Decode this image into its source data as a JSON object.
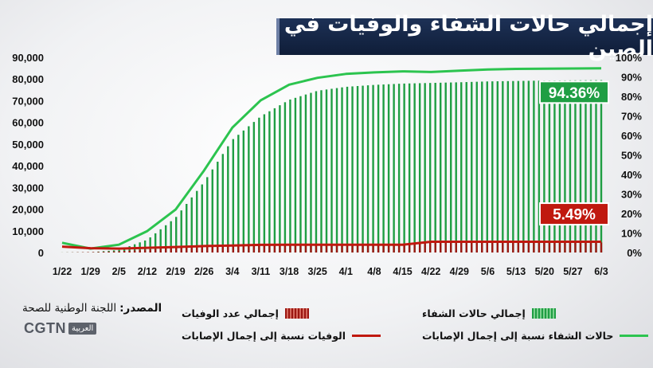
{
  "title": "إجمالي حالات الشفاء والوفيات في الصين",
  "source_label": "المصدر:",
  "source_text": "اللجنة الوطنية للصحة",
  "logo_text": "CGTN",
  "logo_sub": "العربية",
  "legend": {
    "recovered_bars": "إجمالي حالات الشفاء",
    "deaths_bars": "إجمالي عدد الوفيات",
    "recovery_ratio": "حالات الشفاء نسبة إلى إجمال الإصابات",
    "death_ratio": "الوفيات نسبة إلى إجمال الإصابات"
  },
  "colors": {
    "recovered": "#1f9e43",
    "recovery_line": "#2cc44f",
    "deaths": "#9c1712",
    "death_line": "#c0190f",
    "title_bg": "#1b2e52"
  },
  "chart_data": {
    "type": "bar",
    "x_ticks": [
      "1/22",
      "1/29",
      "2/5",
      "2/12",
      "2/19",
      "2/26",
      "3/4",
      "3/11",
      "3/18",
      "3/25",
      "4/1",
      "4/8",
      "4/15",
      "4/22",
      "4/29",
      "5/6",
      "5/13",
      "5/20",
      "5/27",
      "6/3"
    ],
    "y_left": {
      "ticks": [
        "0",
        "10,000",
        "20,000",
        "30,000",
        "40,000",
        "50,000",
        "60,000",
        "70,000",
        "80,000",
        "90,000"
      ],
      "ylim": [
        0,
        90000
      ]
    },
    "y_right": {
      "ticks": [
        "0%",
        "10%",
        "20%",
        "30%",
        "40%",
        "50%",
        "60%",
        "70%",
        "80%",
        "90%",
        "100%"
      ],
      "ylim": [
        0,
        100
      ]
    },
    "series": [
      {
        "name": "إجمالي حالات الشفاء",
        "kind": "bars",
        "axis": "left",
        "points": [
          [
            "1/22",
            28
          ],
          [
            "1/29",
            130
          ],
          [
            "2/5",
            1150
          ],
          [
            "2/12",
            5900
          ],
          [
            "2/19",
            16100
          ],
          [
            "2/26",
            32500
          ],
          [
            "3/4",
            52000
          ],
          [
            "3/11",
            62800
          ],
          [
            "3/18",
            70400
          ],
          [
            "3/25",
            74600
          ],
          [
            "4/1",
            76400
          ],
          [
            "4/8",
            77300
          ],
          [
            "4/15",
            77900
          ],
          [
            "4/22",
            78200
          ],
          [
            "4/29",
            78500
          ],
          [
            "5/6",
            78900
          ],
          [
            "5/13",
            79100
          ],
          [
            "5/20",
            79300
          ],
          [
            "5/27",
            79400
          ],
          [
            "6/3",
            79500
          ]
        ]
      },
      {
        "name": "إجمالي عدد الوفيات",
        "kind": "bars",
        "axis": "left",
        "points": [
          [
            "1/22",
            17
          ],
          [
            "1/29",
            170
          ],
          [
            "2/5",
            560
          ],
          [
            "2/12",
            1370
          ],
          [
            "2/19",
            2120
          ],
          [
            "2/26",
            2750
          ],
          [
            "3/4",
            2980
          ],
          [
            "3/11",
            3160
          ],
          [
            "3/18",
            3240
          ],
          [
            "3/25",
            3290
          ],
          [
            "4/1",
            3310
          ],
          [
            "4/8",
            3330
          ],
          [
            "4/15",
            3340
          ],
          [
            "4/22",
            4640
          ],
          [
            "4/29",
            4640
          ],
          [
            "5/6",
            4640
          ],
          [
            "5/13",
            4640
          ],
          [
            "5/20",
            4640
          ],
          [
            "5/27",
            4640
          ],
          [
            "6/3",
            4640
          ]
        ]
      },
      {
        "name": "حالات الشفاء نسبة إلى إجمال الإصابات",
        "kind": "line",
        "axis": "right",
        "points": [
          [
            "1/22",
            5
          ],
          [
            "1/29",
            2
          ],
          [
            "2/5",
            4
          ],
          [
            "2/12",
            11
          ],
          [
            "2/19",
            22
          ],
          [
            "2/26",
            42
          ],
          [
            "3/4",
            64
          ],
          [
            "3/11",
            78
          ],
          [
            "3/18",
            86
          ],
          [
            "3/25",
            89.5
          ],
          [
            "4/1",
            91.5
          ],
          [
            "4/8",
            92.3
          ],
          [
            "4/15",
            92.8
          ],
          [
            "4/22",
            92.5
          ],
          [
            "4/29",
            93.2
          ],
          [
            "5/6",
            93.8
          ],
          [
            "5/13",
            94.1
          ],
          [
            "5/20",
            94.2
          ],
          [
            "5/27",
            94.3
          ],
          [
            "6/3",
            94.36
          ]
        ]
      },
      {
        "name": "الوفيات نسبة إلى إجمال الإصابات",
        "kind": "line",
        "axis": "right",
        "points": [
          [
            "1/22",
            3
          ],
          [
            "1/29",
            2.2
          ],
          [
            "2/5",
            2
          ],
          [
            "2/12",
            2.4
          ],
          [
            "2/19",
            2.8
          ],
          [
            "2/26",
            3.3
          ],
          [
            "3/4",
            3.6
          ],
          [
            "3/11",
            3.9
          ],
          [
            "3/18",
            4
          ],
          [
            "3/25",
            4
          ],
          [
            "4/1",
            4
          ],
          [
            "4/8",
            4
          ],
          [
            "4/15",
            4
          ],
          [
            "4/22",
            5.5
          ],
          [
            "4/29",
            5.5
          ],
          [
            "5/6",
            5.5
          ],
          [
            "5/13",
            5.5
          ],
          [
            "5/20",
            5.5
          ],
          [
            "5/27",
            5.49
          ],
          [
            "6/3",
            5.49
          ]
        ]
      }
    ],
    "annotations": [
      {
        "text": "94.36%",
        "series": "حالات الشفاء نسبة إلى إجمال الإصابات",
        "color": "#1f9e43"
      },
      {
        "text": "5.49%",
        "series": "الوفيات نسبة إلى إجمال الإصابات",
        "color": "#c0190f"
      }
    ],
    "grid": false,
    "legend_position": "bottom"
  }
}
